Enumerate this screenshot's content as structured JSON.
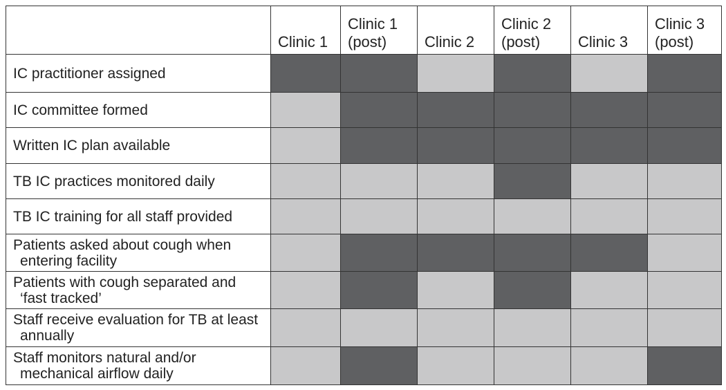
{
  "table": {
    "colors": {
      "yes": "#5f6062",
      "no": "#c8c8c9"
    },
    "columns": [
      "Clinic 1",
      "Clinic 1 (post)",
      "Clinic 2",
      "Clinic 2 (post)",
      "Clinic 3",
      "Clinic 3 (post)"
    ],
    "rows": [
      {
        "label": "IC practitioner assigned",
        "cells": [
          true,
          true,
          false,
          true,
          false,
          true
        ]
      },
      {
        "label": "IC committee formed",
        "cells": [
          false,
          true,
          true,
          true,
          true,
          true
        ]
      },
      {
        "label": "Written IC plan available",
        "cells": [
          false,
          true,
          true,
          true,
          true,
          true
        ]
      },
      {
        "label": "TB IC practices monitored daily",
        "cells": [
          false,
          false,
          false,
          true,
          false,
          false
        ]
      },
      {
        "label": "TB IC training for all staff provided",
        "cells": [
          false,
          false,
          false,
          false,
          false,
          false
        ]
      },
      {
        "label": "Patients asked about cough when entering facility",
        "cells": [
          false,
          true,
          true,
          true,
          true,
          false
        ]
      },
      {
        "label": "Patients with cough separated and ‘fast tracked’",
        "cells": [
          false,
          true,
          false,
          true,
          false,
          false
        ]
      },
      {
        "label": "Staff receive evaluation for TB at least annually",
        "cells": [
          false,
          false,
          false,
          false,
          false,
          false
        ]
      },
      {
        "label": "Staff monitors natural and/or mechanical airflow daily",
        "cells": [
          false,
          true,
          false,
          false,
          false,
          true
        ]
      }
    ]
  }
}
